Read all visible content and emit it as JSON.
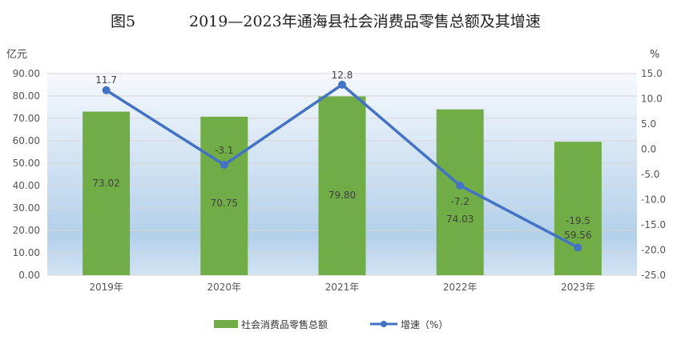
{
  "figure_label": "图5",
  "chart_data": {
    "type": "bar+line",
    "title": "2019—2023年通海县社会消费品零售总额及其增速",
    "categories": [
      "2019年",
      "2020年",
      "2021年",
      "2022年",
      "2023年"
    ],
    "series": [
      {
        "name": "社会消费品零售总额",
        "type": "bar",
        "axis": "left",
        "values": [
          73.02,
          70.75,
          79.8,
          74.03,
          59.56
        ],
        "labels": [
          "73.02",
          "70.75",
          "79.80",
          "74.03",
          "59.56"
        ],
        "color": "#70ad47"
      },
      {
        "name": "增速（%）",
        "type": "line",
        "axis": "right",
        "values": [
          11.7,
          -3.1,
          12.8,
          -7.2,
          -19.5
        ],
        "labels": [
          "11.7",
          "-3.1",
          "12.8",
          "-7.2",
          "-19.5"
        ],
        "color": "#4472c4"
      }
    ],
    "ylabel_left": "亿元",
    "ylabel_right": "%",
    "ylim_left": [
      0,
      90
    ],
    "ylim_right": [
      -25,
      15
    ],
    "yticks_left": [
      "0.00",
      "10.00",
      "20.00",
      "30.00",
      "40.00",
      "50.00",
      "60.00",
      "70.00",
      "80.00",
      "90.00"
    ],
    "yticks_right": [
      "-25.0",
      "-20.0",
      "-15.0",
      "-10.0",
      "-5.0",
      "0.0",
      "5.0",
      "10.0",
      "15.0"
    ],
    "grid": true,
    "legend": "bottom"
  }
}
